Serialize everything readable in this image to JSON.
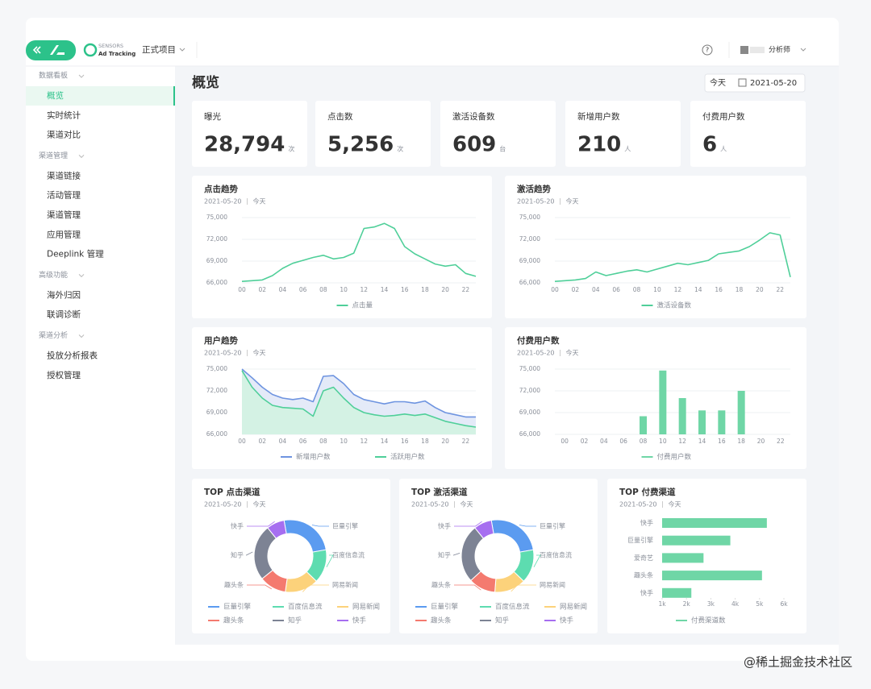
{
  "header": {
    "brand": "SENSORS",
    "product": "Ad Tracking",
    "project": "正式项目",
    "user": "分析师"
  },
  "sidebar_selected": "概览",
  "sidebar": [
    {
      "group": "数据看板",
      "items": [
        "概览",
        "实时统计",
        "渠道对比"
      ]
    },
    {
      "group": "渠道管理",
      "items": [
        "渠道链接",
        "活动管理",
        "渠道管理",
        "应用管理",
        "Deeplink 管理"
      ]
    },
    {
      "group": "高级功能",
      "items": [
        "海外归因",
        "联调诊断"
      ]
    },
    {
      "group": "渠道分析",
      "items": [
        "投放分析报表",
        "授权管理"
      ]
    }
  ],
  "page": {
    "title": "概览",
    "date_preset": "今天",
    "date": "2021-05-20"
  },
  "kpis": [
    {
      "label": "曝光",
      "value": "28,794",
      "unit": "次"
    },
    {
      "label": "点击数",
      "value": "5,256",
      "unit": "次"
    },
    {
      "label": "激活设备数",
      "value": "609",
      "unit": "台"
    },
    {
      "label": "新增用户数",
      "value": "210",
      "unit": "人"
    },
    {
      "label": "付费用户数",
      "value": "6",
      "unit": "人"
    }
  ],
  "chart_data": [
    {
      "type": "line",
      "title": "点击趋势",
      "date": "2021-05-20",
      "range": "今天",
      "grid": true,
      "x": [
        0,
        1,
        2,
        3,
        4,
        5,
        6,
        7,
        8,
        9,
        10,
        11,
        12,
        13,
        14,
        15,
        16,
        17,
        18,
        19,
        20,
        21,
        22,
        23
      ],
      "xlim": [
        0,
        23
      ],
      "xticks": [
        {
          "value": 0,
          "label": "00"
        },
        {
          "value": 2,
          "label": "02"
        },
        {
          "value": 4,
          "label": "04"
        },
        {
          "value": 6,
          "label": "06"
        },
        {
          "value": 8,
          "label": "08"
        },
        {
          "value": 10,
          "label": "10"
        },
        {
          "value": 12,
          "label": "12"
        },
        {
          "value": 14,
          "label": "14"
        },
        {
          "value": 16,
          "label": "16"
        },
        {
          "value": 18,
          "label": "18"
        },
        {
          "value": 20,
          "label": "20"
        },
        {
          "value": 22,
          "label": "22"
        }
      ],
      "ylim": [
        66000,
        75000
      ],
      "yticks": [
        {
          "value": 66000,
          "label": "66,000"
        },
        {
          "value": 69000,
          "label": "69,000"
        },
        {
          "value": 72000,
          "label": "72,000"
        },
        {
          "value": 75000,
          "label": "75,000"
        }
      ],
      "series": [
        {
          "name": "点击量",
          "color": "#4fcf99",
          "values": [
            66200,
            66300,
            66400,
            67000,
            68000,
            68700,
            69100,
            69500,
            69800,
            69300,
            69500,
            70100,
            73500,
            73700,
            74200,
            73500,
            71000,
            70000,
            69300,
            68600,
            68300,
            68500,
            67300,
            66900
          ]
        }
      ]
    },
    {
      "type": "line",
      "title": "激活趋势",
      "date": "2021-05-20",
      "range": "今天",
      "grid": true,
      "x": [
        0,
        1,
        2,
        3,
        4,
        5,
        6,
        7,
        8,
        9,
        10,
        11,
        12,
        13,
        14,
        15,
        16,
        17,
        18,
        19,
        20,
        21,
        22,
        23
      ],
      "xlim": [
        0,
        23
      ],
      "xticks": [
        {
          "value": 0,
          "label": "00"
        },
        {
          "value": 2,
          "label": "02"
        },
        {
          "value": 4,
          "label": "04"
        },
        {
          "value": 6,
          "label": "06"
        },
        {
          "value": 8,
          "label": "08"
        },
        {
          "value": 10,
          "label": "10"
        },
        {
          "value": 12,
          "label": "12"
        },
        {
          "value": 14,
          "label": "14"
        },
        {
          "value": 16,
          "label": "16"
        },
        {
          "value": 18,
          "label": "18"
        },
        {
          "value": 20,
          "label": "20"
        },
        {
          "value": 22,
          "label": "22"
        }
      ],
      "ylim": [
        66000,
        75000
      ],
      "yticks": [
        {
          "value": 66000,
          "label": "66,000"
        },
        {
          "value": 69000,
          "label": "69,000"
        },
        {
          "value": 72000,
          "label": "72,000"
        },
        {
          "value": 75000,
          "label": "75,000"
        }
      ],
      "series": [
        {
          "name": "激活设备数",
          "color": "#4fcf99",
          "values": [
            66200,
            66300,
            66400,
            66600,
            67500,
            67000,
            67300,
            67600,
            67800,
            67500,
            67900,
            68300,
            68700,
            68500,
            68800,
            69100,
            70000,
            70200,
            70400,
            71000,
            71900,
            72900,
            72600,
            66800
          ]
        }
      ]
    },
    {
      "type": "area",
      "title": "用户趋势",
      "date": "2021-05-20",
      "range": "今天",
      "grid": true,
      "x": [
        0,
        1,
        2,
        3,
        4,
        5,
        6,
        7,
        8,
        9,
        10,
        11,
        12,
        13,
        14,
        15,
        16,
        17,
        18,
        19,
        20,
        21,
        22,
        23
      ],
      "xlim": [
        0,
        23
      ],
      "xticks": [
        {
          "value": 0,
          "label": "00"
        },
        {
          "value": 2,
          "label": "02"
        },
        {
          "value": 4,
          "label": "04"
        },
        {
          "value": 6,
          "label": "06"
        },
        {
          "value": 8,
          "label": "08"
        },
        {
          "value": 10,
          "label": "10"
        },
        {
          "value": 12,
          "label": "12"
        },
        {
          "value": 14,
          "label": "14"
        },
        {
          "value": 16,
          "label": "16"
        },
        {
          "value": 18,
          "label": "18"
        },
        {
          "value": 20,
          "label": "20"
        },
        {
          "value": 22,
          "label": "22"
        }
      ],
      "ylim": [
        66000,
        75000
      ],
      "yticks": [
        {
          "value": 66000,
          "label": "66,000"
        },
        {
          "value": 69000,
          "label": "69,000"
        },
        {
          "value": 72000,
          "label": "72,000"
        },
        {
          "value": 75000,
          "label": "75,000"
        }
      ],
      "series": [
        {
          "name": "新增用户数",
          "color": "#6e94e0",
          "area_color": "#e4eaf8",
          "values": [
            75000,
            73800,
            72500,
            71500,
            71000,
            70800,
            71000,
            70500,
            74000,
            74100,
            73000,
            71500,
            70800,
            70500,
            70200,
            70500,
            70500,
            70300,
            70600,
            69700,
            69000,
            68700,
            68400,
            68400
          ]
        },
        {
          "name": "活跃用户数",
          "color": "#4fcf99",
          "area_color": "#d4f2e4",
          "values": [
            74800,
            72500,
            71000,
            70000,
            69700,
            69600,
            69500,
            68500,
            72000,
            72500,
            71000,
            69700,
            69000,
            68700,
            68500,
            68600,
            68800,
            68600,
            68800,
            68300,
            67800,
            67500,
            67200,
            67000
          ]
        }
      ]
    },
    {
      "type": "bar",
      "title": "付费用户数",
      "date": "2021-05-20",
      "range": "今天",
      "grid": true,
      "categories": [
        "00",
        "02",
        "04",
        "06",
        "08",
        "10",
        "12",
        "14",
        "16",
        "18",
        "20",
        "22"
      ],
      "ylim": [
        66000,
        75000
      ],
      "yticks": [
        {
          "value": 66000,
          "label": "66,000"
        },
        {
          "value": 69000,
          "label": "69,000"
        },
        {
          "value": 72000,
          "label": "72,000"
        },
        {
          "value": 75000,
          "label": "75,000"
        }
      ],
      "series": [
        {
          "name": "付费用户数",
          "color": "#6fd6a6",
          "values": [
            null,
            null,
            null,
            null,
            68500,
            74800,
            71000,
            69300,
            69300,
            72000,
            null,
            null
          ]
        }
      ]
    },
    {
      "type": "donut",
      "title": "TOP 点击渠道",
      "date": "2021-05-20",
      "range": "今天",
      "categories": [
        "巨量引擎",
        "百度信息流",
        "网易新闻",
        "趣头条",
        "知乎",
        "快手"
      ],
      "values": [
        25,
        15,
        15,
        12,
        25,
        8
      ],
      "colors": [
        "#5b9bf0",
        "#5ddcb0",
        "#fcd27b",
        "#f47a6f",
        "#7d8394",
        "#a66ef0"
      ]
    },
    {
      "type": "donut",
      "title": "TOP 激活渠道",
      "date": "2021-05-20",
      "range": "今天",
      "categories": [
        "巨量引擎",
        "百度信息流",
        "网易新闻",
        "趣头条",
        "知乎",
        "快手"
      ],
      "values": [
        25,
        15,
        14,
        12,
        26,
        8
      ],
      "colors": [
        "#5b9bf0",
        "#5ddcb0",
        "#fcd27b",
        "#f47a6f",
        "#7d8394",
        "#a66ef0"
      ]
    },
    {
      "type": "bar",
      "horizontal": true,
      "title": "TOP 付费渠道",
      "date": "2021-05-20",
      "range": "今天",
      "categories": [
        "快手",
        "巨量引擎",
        "爱奇艺",
        "趣头条",
        "快手"
      ],
      "xlim": [
        1000,
        6000
      ],
      "xticks": [
        {
          "value": 1000,
          "label": "1k"
        },
        {
          "value": 2000,
          "label": "2k"
        },
        {
          "value": 3000,
          "label": "3k"
        },
        {
          "value": 4000,
          "label": "4k"
        },
        {
          "value": 5000,
          "label": "5k"
        },
        {
          "value": 6000,
          "label": "6k"
        }
      ],
      "series": [
        {
          "name": "付费渠道数",
          "color": "#6fd6a6",
          "values": [
            5300,
            3800,
            2700,
            5100,
            2200
          ]
        }
      ]
    }
  ],
  "watermark": "@稀土掘金技术社区"
}
